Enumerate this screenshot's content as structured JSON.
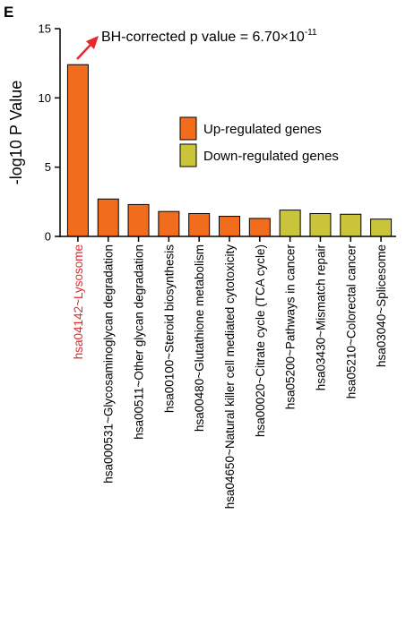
{
  "panel_label": "E",
  "chart_data": {
    "type": "bar",
    "ylabel": "-log10 P Value",
    "xlabel": "",
    "ylim": [
      0,
      15
    ],
    "yticks": [
      "0",
      "5",
      "10",
      "15"
    ],
    "categories": [
      "hsa04142~Lysosome",
      "hsa000531~Glycosaminoglycan degradation",
      "hsa00511~Other glycan degradation",
      "hsa00100~Steroid biosynthesis",
      "hsa00480~Glutathione metabolism",
      "hsa04650~Natural killer cell mediated cytotoxicity",
      "hsa00020~Citrate cycle (TCA cycle)",
      "hsa05200~Pathways in cancer",
      "hsa03430~Mismatch repair",
      "hsa05210~Colorectal cancer",
      "hsa03040~Splicesome"
    ],
    "values": [
      12.4,
      2.7,
      2.3,
      1.8,
      1.65,
      1.45,
      1.3,
      1.9,
      1.65,
      1.6,
      1.25
    ],
    "groups": [
      "up",
      "up",
      "up",
      "up",
      "up",
      "up",
      "up",
      "down",
      "down",
      "down",
      "down"
    ],
    "highlight_category_index": 0,
    "legend": {
      "position": "top-right",
      "entries": [
        {
          "key": "up",
          "label": "Up-regulated genes"
        },
        {
          "key": "down",
          "label": "Down-regulated genes"
        }
      ]
    },
    "annotation": {
      "prefix": "BH-corrected p value = 6.70×10",
      "exponent": "-11",
      "arrow_color": "#e8262b"
    },
    "colors": {
      "up": "#f26c1e",
      "down": "#c9c43a",
      "highlight_label": "#e8262b",
      "axis": "#000000",
      "bar_stroke": "#000000"
    },
    "grid": false
  }
}
